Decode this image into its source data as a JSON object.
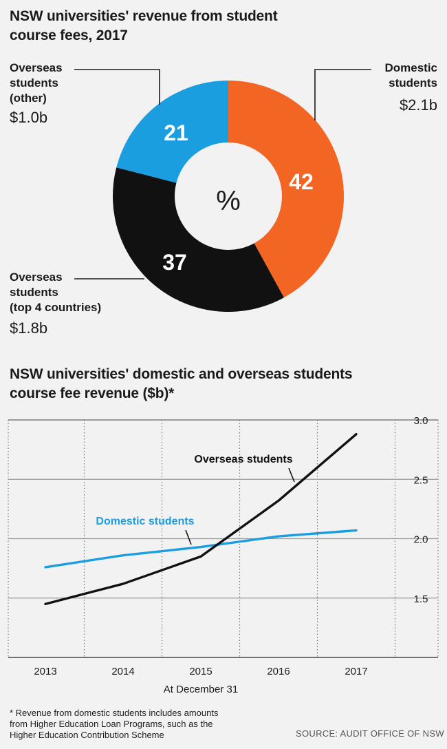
{
  "donut": {
    "title_line1": "NSW universities' revenue from student",
    "title_line2": "course fees, 2017",
    "center_label": "%",
    "labels": {
      "domestic_line1": "Domestic",
      "domestic_line2": "students",
      "domestic_amount": "$2.1b",
      "other_line1": "Overseas",
      "other_line2": "students",
      "other_line3": "(other)",
      "other_amount": "$1.0b",
      "top4_line1": "Overseas",
      "top4_line2": "students",
      "top4_line3": "(top 4 countries)",
      "top4_amount": "$1.8b"
    }
  },
  "line": {
    "title_line1": "NSW universities' domestic and overseas students",
    "title_line2": "course fee revenue ($b)*",
    "xlabel": "At December 31",
    "series_label_overseas": "Overseas students",
    "series_label_domestic": "Domestic students"
  },
  "footnote_line1": "* Revenue from domestic students includes amounts",
  "footnote_line2": "from Higher Education Loan Programs, such as the",
  "footnote_line3": "Higher Education Contribution Scheme",
  "source": "SOURCE: AUDIT OFFICE OF NSW",
  "chart_data": [
    {
      "type": "pie",
      "title": "NSW universities' revenue from student course fees, 2017",
      "unit": "%",
      "slices": [
        {
          "label": "Domestic students",
          "value": 42,
          "amount": "$2.1b",
          "color": "#f26522"
        },
        {
          "label": "Overseas students (top 4 countries)",
          "value": 37,
          "amount": "$1.8b",
          "color": "#111111"
        },
        {
          "label": "Overseas students (other)",
          "value": 21,
          "amount": "$1.0b",
          "color": "#1a9ee0"
        }
      ]
    },
    {
      "type": "line",
      "title": "NSW universities' domestic and overseas students course fee revenue ($b)*",
      "xlabel": "At December 31",
      "ylabel": "",
      "x": [
        "2013",
        "2014",
        "2015",
        "2016",
        "2017"
      ],
      "y_ticks": [
        "3.0",
        "2.5",
        "2.0",
        "1.5"
      ],
      "ylim": [
        1.0,
        3.0
      ],
      "grid": true,
      "series": [
        {
          "name": "Overseas students",
          "color": "#111111",
          "values": [
            1.45,
            1.62,
            1.85,
            2.32,
            2.88
          ]
        },
        {
          "name": "Domestic students",
          "color": "#1a9ee0",
          "values": [
            1.76,
            1.86,
            1.93,
            2.02,
            2.07
          ]
        }
      ]
    }
  ]
}
